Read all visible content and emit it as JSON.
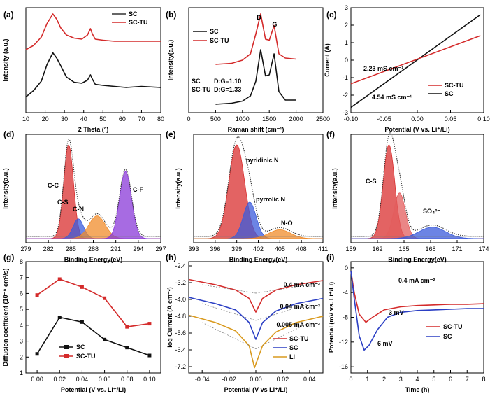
{
  "chart_data": [
    {
      "id": "a",
      "panel_label": "(a)",
      "type": "line",
      "xlabel": "2 Theta (°)",
      "ylabel": "Intensity (a.u.)",
      "xlim": [
        10,
        80
      ],
      "ylim": [
        0,
        10
      ],
      "x_ticks": [
        "10",
        "20",
        "30",
        "40",
        "50",
        "60",
        "70",
        "80"
      ],
      "legend": [
        {
          "name": "SC",
          "color": "#333333"
        },
        {
          "name": "SC-TU",
          "color": "#d42a2a"
        }
      ],
      "series": [
        {
          "name": "SC",
          "color": "#111111",
          "x": [
            10,
            14,
            18,
            21,
            24,
            26,
            28,
            31,
            35,
            39,
            42,
            43.5,
            44.5,
            46,
            50,
            56,
            62,
            70,
            80
          ],
          "y": [
            1.5,
            2.1,
            3.0,
            4.6,
            5.7,
            5.2,
            4.5,
            3.4,
            2.9,
            2.8,
            3.1,
            3.6,
            3.2,
            2.7,
            2.6,
            2.5,
            2.4,
            2.5,
            2.4
          ]
        },
        {
          "name": "SC-TU",
          "color": "#d42a2a",
          "x": [
            10,
            14,
            18,
            21,
            24,
            26,
            28,
            31,
            35,
            39,
            42,
            43.5,
            44.5,
            46,
            50,
            56,
            62,
            70,
            80
          ],
          "y": [
            6.0,
            6.4,
            7.2,
            8.5,
            9.4,
            8.9,
            8.1,
            7.4,
            7.1,
            7.0,
            7.4,
            8.0,
            7.5,
            7.0,
            6.9,
            6.8,
            6.8,
            6.8,
            6.8
          ]
        }
      ]
    },
    {
      "id": "b",
      "panel_label": "(b)",
      "type": "line",
      "xlabel": "Raman shift (cm⁻¹)",
      "ylabel": "Intensity(a.u.)",
      "xlim": [
        0,
        2500
      ],
      "ylim": [
        0,
        10
      ],
      "x_ticks": [
        "0",
        "500",
        "1000",
        "1500",
        "2000",
        "2500"
      ],
      "legend": [
        {
          "name": "SC",
          "color": "#111111"
        },
        {
          "name": "SC-TU",
          "color": "#d42a2a"
        }
      ],
      "peak_labels": [
        "D",
        "G"
      ],
      "ratios": [
        {
          "name": "SC",
          "text": "D:G=1.10"
        },
        {
          "name": "SC-TU",
          "text": "D:G=1.33"
        }
      ],
      "series": [
        {
          "name": "SC",
          "color": "#111111",
          "x": [
            500,
            800,
            1000,
            1150,
            1250,
            1340,
            1430,
            1500,
            1590,
            1680,
            1800,
            2000
          ],
          "y": [
            0.8,
            0.9,
            1.1,
            1.6,
            3.0,
            6.0,
            3.5,
            3.6,
            5.6,
            2.0,
            1.2,
            1.2
          ]
        },
        {
          "name": "SC-TU",
          "color": "#d42a2a",
          "x": [
            500,
            800,
            1000,
            1150,
            1250,
            1340,
            1430,
            1500,
            1590,
            1680,
            1800,
            2000
          ],
          "y": [
            4.6,
            4.7,
            5.0,
            5.6,
            7.5,
            9.4,
            7.0,
            6.9,
            8.3,
            5.6,
            5.2,
            5.1
          ]
        }
      ]
    },
    {
      "id": "c",
      "panel_label": "(c)",
      "type": "line",
      "xlabel": "Potential (V vs. Li⁺/Li)",
      "ylabel": "Current (A)",
      "xlim": [
        -0.1,
        0.1
      ],
      "ylim": [
        -3,
        3
      ],
      "x_ticks": [
        "-0.10",
        "-0.05",
        "0.00",
        "0.05",
        "0.10"
      ],
      "y_ticks": [
        "-3",
        "-2",
        "-1",
        "0",
        "1",
        "2",
        "3"
      ],
      "legend": [
        {
          "name": "SC-TU",
          "color": "#d42a2a"
        },
        {
          "name": "SC",
          "color": "#111111"
        }
      ],
      "annotations": [
        "2.23 mS cm⁻¹",
        "4.54 mS cm⁻¹"
      ],
      "series": [
        {
          "name": "SC",
          "color": "#111111",
          "x": [
            -0.1,
            0.095
          ],
          "y": [
            -2.7,
            2.6
          ]
        },
        {
          "name": "SC-TU",
          "color": "#d42a2a",
          "x": [
            -0.1,
            0.095
          ],
          "y": [
            -1.35,
            1.4
          ]
        }
      ]
    },
    {
      "id": "d",
      "panel_label": "(d)",
      "type": "area",
      "xlabel": "Binding Energy(eV)",
      "ylabel": "Intensity(a.u.)",
      "xlim": [
        279,
        297
      ],
      "x_ticks": [
        "279",
        "282",
        "285",
        "288",
        "291",
        "294",
        "297"
      ],
      "peaks": [
        {
          "label": "C-C",
          "center": 284.7,
          "height": 9.5,
          "width": 0.65,
          "color": "#d92f2f",
          "label_color": "#c62828"
        },
        {
          "label": "C-S",
          "center": 286.0,
          "height": 2.0,
          "width": 0.7,
          "color": "#3b5bdb",
          "label_color": "#3b5bdb"
        },
        {
          "label": "C-N",
          "center": 288.5,
          "height": 2.3,
          "width": 1.1,
          "color": "#f08c2b",
          "label_color": "#e67700"
        },
        {
          "label": "C-F",
          "center": 292.3,
          "height": 6.8,
          "width": 0.8,
          "color": "#8a3ad8",
          "label_color": "#7b2cbf"
        }
      ]
    },
    {
      "id": "e",
      "panel_label": "(e)",
      "type": "area",
      "xlabel": "Binding Energy(eV)",
      "ylabel": "Intensity(a.u.)",
      "xlim": [
        393,
        411
      ],
      "x_ticks": [
        "393",
        "396",
        "399",
        "402",
        "405",
        "408",
        "411"
      ],
      "peaks": [
        {
          "label": "pyridinic N",
          "center": 399.0,
          "height": 8.5,
          "width": 1.1,
          "color": "#d92f2f",
          "label_color": "#c62828"
        },
        {
          "label": "pyrrolic N",
          "center": 400.8,
          "height": 3.3,
          "width": 0.9,
          "color": "#3b5bdb",
          "label_color": "#2b3fc4"
        },
        {
          "label": "N-O",
          "center": 405.0,
          "height": 0.8,
          "width": 1.5,
          "color": "#f08c2b",
          "label_color": "#e67700"
        }
      ]
    },
    {
      "id": "f",
      "panel_label": "(f)",
      "type": "area",
      "xlabel": "Binding Energy(eV)",
      "ylabel": "Intensity(a.u.)",
      "xlim": [
        159,
        174
      ],
      "x_ticks": [
        "159",
        "162",
        "165",
        "168",
        "171",
        "174"
      ],
      "peaks": [
        {
          "label": "C-S",
          "center": 163.3,
          "height": 8.2,
          "width": 0.65,
          "color": "#d92f2f",
          "label_color": "#c62828"
        },
        {
          "label": "",
          "center": 164.5,
          "height": 4.0,
          "width": 0.65,
          "color": "#e35d5d",
          "label_color": "#c62828"
        },
        {
          "label": "SO₄²⁻",
          "center": 168.2,
          "height": 1.0,
          "width": 1.5,
          "color": "#3b5bdb",
          "label_color": "#2b3fc4"
        }
      ]
    },
    {
      "id": "g",
      "panel_label": "(g)",
      "type": "line",
      "xlabel": "Potential (V vs. Li⁺/Li)",
      "ylabel": "Diffusion coefficient (10⁻⁹ cm²/s)",
      "xlim": [
        -0.01,
        0.11
      ],
      "ylim": [
        1,
        8
      ],
      "x_ticks": [
        "0.00",
        "0.02",
        "0.04",
        "0.06",
        "0.08",
        "0.10"
      ],
      "y_ticks": [
        "1",
        "2",
        "3",
        "4",
        "5",
        "6",
        "7",
        "8"
      ],
      "legend": [
        {
          "name": "SC",
          "color": "#111111"
        },
        {
          "name": "SC-TU",
          "color": "#d42a2a"
        }
      ],
      "series": [
        {
          "name": "SC",
          "color": "#111111",
          "x": [
            0.0,
            0.02,
            0.04,
            0.06,
            0.08,
            0.1
          ],
          "y": [
            2.2,
            4.5,
            4.2,
            3.1,
            2.6,
            2.1
          ]
        },
        {
          "name": "SC-TU",
          "color": "#d42a2a",
          "x": [
            0.0,
            0.02,
            0.04,
            0.06,
            0.08,
            0.1
          ],
          "y": [
            5.9,
            6.9,
            6.4,
            5.7,
            3.9,
            4.1
          ]
        }
      ]
    },
    {
      "id": "h",
      "panel_label": "(h)",
      "type": "line",
      "xlabel": "Potential (V vs Li⁺/Li)",
      "ylabel": "log Current (A cm⁻²)",
      "xlim": [
        -0.05,
        0.05
      ],
      "ylim": [
        -7.5,
        -2.2
      ],
      "x_ticks": [
        "-0.04",
        "-0.02",
        "0.00",
        "0.02",
        "0.04"
      ],
      "y_ticks": [
        "-2.4",
        "-3.2",
        "-4.0",
        "-4.8",
        "-5.6",
        "-6.4",
        "-7.2"
      ],
      "legend": [
        {
          "name": "SC-TU",
          "color": "#d42a2a"
        },
        {
          "name": "SC",
          "color": "#2b3fc4"
        },
        {
          "name": "Li",
          "color": "#d99a1e"
        }
      ],
      "annotations": [
        "0.4 mA cm⁻²",
        "0.04 mA cm⁻²",
        "0.005 mA cm⁻²"
      ],
      "series": [
        {
          "name": "SC-TU",
          "color": "#d42a2a",
          "x": [
            -0.05,
            -0.03,
            -0.015,
            -0.005,
            0.0,
            0.005,
            0.015,
            0.03,
            0.05
          ],
          "y": [
            -3.05,
            -3.3,
            -3.55,
            -3.95,
            -4.6,
            -3.95,
            -3.55,
            -3.3,
            -3.1
          ]
        },
        {
          "name": "SC",
          "color": "#2b3fc4",
          "x": [
            -0.05,
            -0.03,
            -0.015,
            -0.005,
            0.0,
            0.005,
            0.015,
            0.03,
            0.05
          ],
          "y": [
            -3.9,
            -4.2,
            -4.5,
            -5.1,
            -5.9,
            -5.1,
            -4.55,
            -4.2,
            -3.95
          ]
        },
        {
          "name": "Li",
          "color": "#d99a1e",
          "x": [
            -0.05,
            -0.03,
            -0.015,
            -0.005,
            -0.001,
            0.005,
            0.015,
            0.03,
            0.05
          ],
          "y": [
            -4.75,
            -5.1,
            -5.5,
            -6.2,
            -7.25,
            -6.2,
            -5.55,
            -5.1,
            -4.8
          ]
        }
      ]
    },
    {
      "id": "i",
      "panel_label": "(i)",
      "type": "line",
      "xlabel": "Time (h)",
      "ylabel": "Potential (mV vs. Li⁺/Li)",
      "xlim": [
        0,
        8
      ],
      "ylim": [
        -17,
        1
      ],
      "x_ticks": [
        "0",
        "1",
        "2",
        "3",
        "4",
        "5",
        "6",
        "7",
        "8"
      ],
      "y_ticks": [
        "0",
        "-4",
        "-8",
        "-12",
        "-16"
      ],
      "legend": [
        {
          "name": "SC-TU",
          "color": "#d42a2a"
        },
        {
          "name": "SC",
          "color": "#2b3fc4"
        }
      ],
      "annotations": [
        "0.4 mA cm⁻²",
        "3 mV",
        "6 mV"
      ],
      "series": [
        {
          "name": "SC-TU",
          "color": "#d42a2a",
          "x": [
            0,
            0.2,
            0.5,
            0.9,
            1.3,
            2,
            3,
            4,
            5,
            6,
            7,
            8
          ],
          "y": [
            -0.5,
            -4,
            -7.5,
            -8.8,
            -8,
            -6.8,
            -6.3,
            -6.1,
            -6.0,
            -5.9,
            -5.9,
            -5.8
          ]
        },
        {
          "name": "SC",
          "color": "#2b3fc4",
          "x": [
            0,
            0.2,
            0.5,
            0.8,
            1.1,
            1.6,
            2.2,
            3,
            4,
            5,
            6,
            7,
            8
          ],
          "y": [
            -0.5,
            -5,
            -11,
            -13.3,
            -12.5,
            -10,
            -8,
            -7.2,
            -6.9,
            -6.8,
            -6.7,
            -6.6,
            -6.6
          ]
        }
      ]
    }
  ]
}
